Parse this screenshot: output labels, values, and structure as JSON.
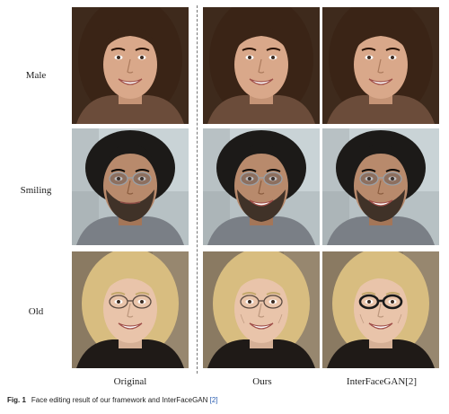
{
  "rows": [
    {
      "label": "Male"
    },
    {
      "label": "Smiling"
    },
    {
      "label": "Old"
    }
  ],
  "columns": [
    {
      "label": "Original"
    },
    {
      "label": "Ours"
    },
    {
      "label": "InterFaceGAN[2]"
    }
  ],
  "caption": {
    "fig": "Fig. 1",
    "text": "Face editing result of our framework and InterFaceGAN",
    "ref": "[2]"
  },
  "faces": {
    "row0": {
      "bg": "#3e2a1c",
      "hair": "#3a2416",
      "skin": "#d9a88a",
      "shirt": "#6b4c3a"
    },
    "row1": {
      "bg": "#c9d3d6",
      "hair": "#1c1a18",
      "skin": "#b88a6c",
      "shirt": "#7a7f86"
    },
    "row2": {
      "bg": "#8a7a62",
      "hair": "#d8bd80",
      "skin": "#e9c4aa",
      "shirt": "#1f1a17"
    }
  }
}
